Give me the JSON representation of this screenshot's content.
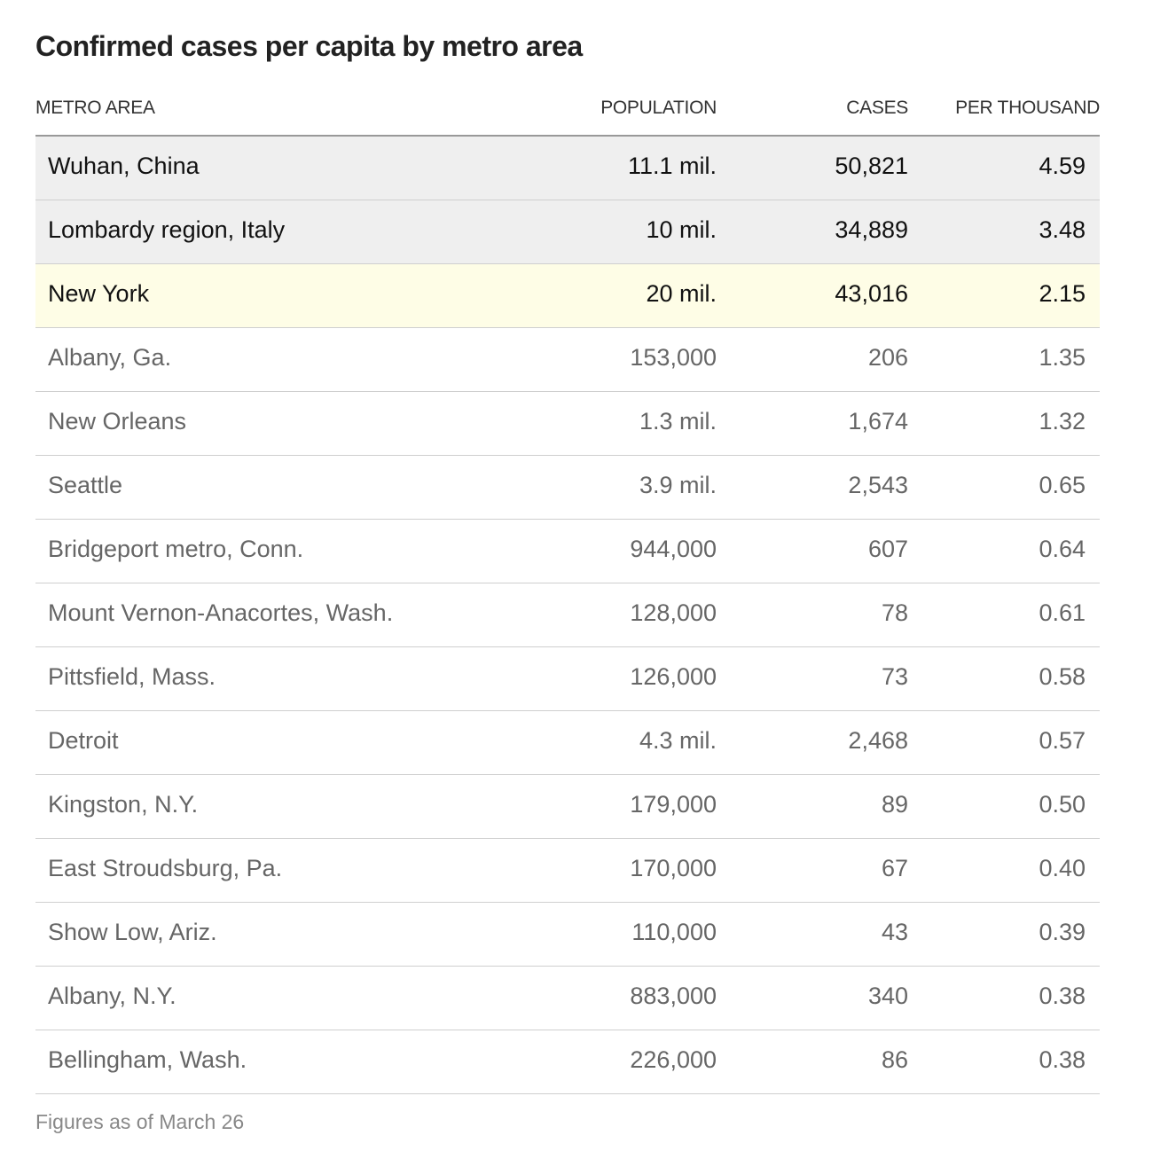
{
  "chart_data": {
    "type": "table",
    "title": "Confirmed cases per capita by metro area",
    "columns": [
      "METRO AREA",
      "POPULATION",
      "CASES",
      "PER THOUSAND"
    ],
    "rows": [
      {
        "area": "Wuhan, China",
        "population": "11.1 mil.",
        "cases": "50,821",
        "per_thousand": "4.59",
        "highlight": "gray"
      },
      {
        "area": "Lombardy region, Italy",
        "population": "10 mil.",
        "cases": "34,889",
        "per_thousand": "3.48",
        "highlight": "gray"
      },
      {
        "area": "New York",
        "population": "20 mil.",
        "cases": "43,016",
        "per_thousand": "2.15",
        "highlight": "yellow"
      },
      {
        "area": "Albany, Ga.",
        "population": "153,000",
        "cases": "206",
        "per_thousand": "1.35",
        "highlight": "none"
      },
      {
        "area": "New Orleans",
        "population": "1.3 mil.",
        "cases": "1,674",
        "per_thousand": "1.32",
        "highlight": "none"
      },
      {
        "area": "Seattle",
        "population": "3.9 mil.",
        "cases": "2,543",
        "per_thousand": "0.65",
        "highlight": "none"
      },
      {
        "area": "Bridgeport metro, Conn.",
        "population": "944,000",
        "cases": "607",
        "per_thousand": "0.64",
        "highlight": "none"
      },
      {
        "area": "Mount Vernon-Anacortes, Wash.",
        "population": "128,000",
        "cases": "78",
        "per_thousand": "0.61",
        "highlight": "none"
      },
      {
        "area": "Pittsfield, Mass.",
        "population": "126,000",
        "cases": "73",
        "per_thousand": "0.58",
        "highlight": "none"
      },
      {
        "area": "Detroit",
        "population": "4.3 mil.",
        "cases": "2,468",
        "per_thousand": "0.57",
        "highlight": "none"
      },
      {
        "area": "Kingston, N.Y.",
        "population": "179,000",
        "cases": "89",
        "per_thousand": "0.50",
        "highlight": "none"
      },
      {
        "area": "East Stroudsburg, Pa.",
        "population": "170,000",
        "cases": "67",
        "per_thousand": "0.40",
        "highlight": "none"
      },
      {
        "area": "Show Low, Ariz.",
        "population": "110,000",
        "cases": "43",
        "per_thousand": "0.39",
        "highlight": "none"
      },
      {
        "area": "Albany, N.Y.",
        "population": "883,000",
        "cases": "340",
        "per_thousand": "0.38",
        "highlight": "none"
      },
      {
        "area": "Bellingham, Wash.",
        "population": "226,000",
        "cases": "86",
        "per_thousand": "0.38",
        "highlight": "none"
      }
    ],
    "footnote": "Figures as of March 26",
    "colors": {
      "highlight_gray": "#efefef",
      "highlight_yellow": "#fefde6"
    }
  }
}
